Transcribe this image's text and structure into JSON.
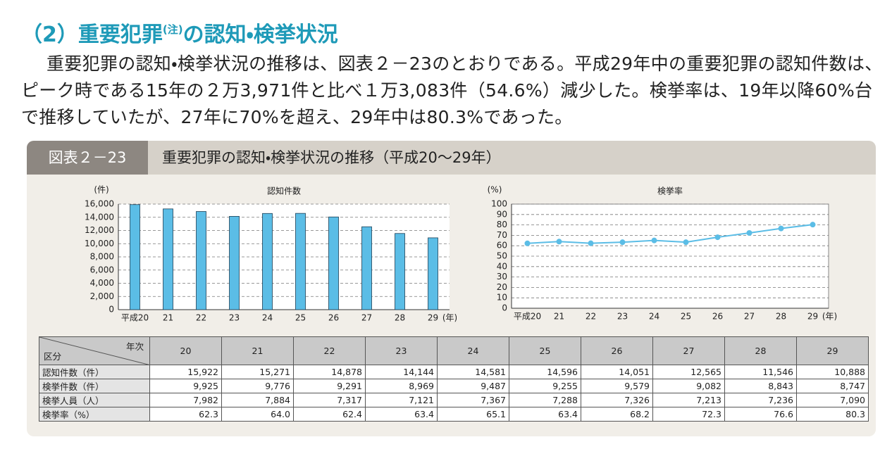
{
  "heading": {
    "before": "（2）重要犯罪",
    "note": "(注)",
    "after": "の認知・検挙状況"
  },
  "paragraph": "重要犯罪の認知・検挙状況の推移は、図表２－23のとおりである。平成29年中の重要犯罪の認知件数は、ピーク時である15年の２万3,971件と比べ１万3,083件（54.6%）減少した。検挙率は、19年以降60%台で推移していたが、27年に70%を超え、29年中は80.3%であった。",
  "figure": {
    "label": "図表２－23",
    "title": "重要犯罪の認知・検挙状況の推移（平成20～29年）"
  },
  "chart_data": [
    {
      "type": "bar",
      "title": "認知件数",
      "y_unit": "(件)",
      "x_unit": "(年)",
      "color": "#5bbde6",
      "grid": true,
      "categories": [
        "平成20",
        "21",
        "22",
        "23",
        "24",
        "25",
        "26",
        "27",
        "28",
        "29"
      ],
      "values": [
        15922,
        15271,
        14878,
        14144,
        14581,
        14596,
        14051,
        12565,
        11546,
        10888
      ],
      "ylim": [
        0,
        16000
      ],
      "yticks": [
        0,
        {
          "value": 2000,
          "label": "2,000"
        },
        {
          "value": 4000,
          "label": "4,000"
        },
        {
          "value": 6000,
          "label": "6,000"
        },
        {
          "value": 8000,
          "label": "8,000"
        },
        {
          "value": 10000,
          "label": "10,000"
        },
        {
          "value": 12000,
          "label": "12,000"
        },
        {
          "value": 14000,
          "label": "14,000"
        },
        {
          "value": 16000,
          "label": "16,000"
        }
      ]
    },
    {
      "type": "line",
      "title": "検挙率",
      "y_unit": "(%)",
      "x_unit": "(年)",
      "color": "#5bbde6",
      "grid": true,
      "categories": [
        "平成20",
        "21",
        "22",
        "23",
        "24",
        "25",
        "26",
        "27",
        "28",
        "29"
      ],
      "values": [
        62.3,
        64.0,
        62.4,
        63.4,
        65.1,
        63.4,
        68.2,
        72.3,
        76.6,
        80.3
      ],
      "ylim": [
        0,
        100
      ],
      "yticks": [
        0,
        10,
        20,
        30,
        40,
        50,
        60,
        70,
        80,
        90,
        100
      ]
    }
  ],
  "table": {
    "corner_top": "年次",
    "corner_bottom": "区分",
    "columns": [
      "20",
      "21",
      "22",
      "23",
      "24",
      "25",
      "26",
      "27",
      "28",
      "29"
    ],
    "rows": [
      [
        "認知件数（件）",
        "15,922",
        "15,271",
        "14,878",
        "14,144",
        "14,581",
        "14,596",
        "14,051",
        "12,565",
        "11,546",
        "10,888"
      ],
      [
        "検挙件数（件）",
        "9,925",
        "9,776",
        "9,291",
        "8,969",
        "9,487",
        "9,255",
        "9,579",
        "9,082",
        "8,843",
        "8,747"
      ],
      [
        "検挙人員（人）",
        "7,982",
        "7,884",
        "7,317",
        "7,121",
        "7,367",
        "7,288",
        "7,326",
        "7,213",
        "7,236",
        "7,090"
      ],
      [
        "検挙率（%）",
        "62.3",
        "64.0",
        "62.4",
        "63.4",
        "65.1",
        "63.4",
        "68.2",
        "72.3",
        "76.6",
        "80.3"
      ]
    ]
  }
}
